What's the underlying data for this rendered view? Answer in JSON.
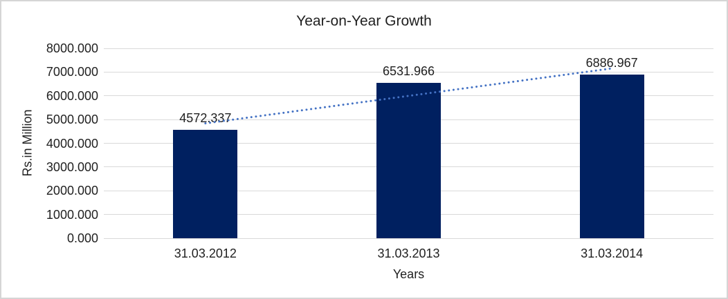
{
  "chart_data": {
    "type": "bar",
    "title": "Year-on-Year Growth",
    "categories": [
      "31.03.2012",
      "31.03.2013",
      "31.03.2014"
    ],
    "values": [
      4572.337,
      6531.966,
      6886.967
    ],
    "data_labels": [
      "4572.337",
      "6531.966",
      "6886.967"
    ],
    "xlabel": "Years",
    "ylabel": "Rs.in Million",
    "ylim": [
      0,
      8000
    ],
    "y_tick_step": 1000,
    "y_tick_labels": [
      "0.000",
      "1000.000",
      "2000.000",
      "3000.000",
      "4000.000",
      "5000.000",
      "6000.000",
      "7000.000",
      "8000.000"
    ],
    "grid": "horizontal",
    "legend": "none",
    "colors": {
      "bar": "#002060",
      "gridline": "#d9d9d9",
      "trendline": "#4472c4",
      "text": "#1f1f1f",
      "frame_border": "#d5d5d5"
    },
    "trendline": {
      "type": "linear",
      "style": "dotted",
      "endpoint_values": [
        4839.8,
        7154.5
      ]
    }
  }
}
